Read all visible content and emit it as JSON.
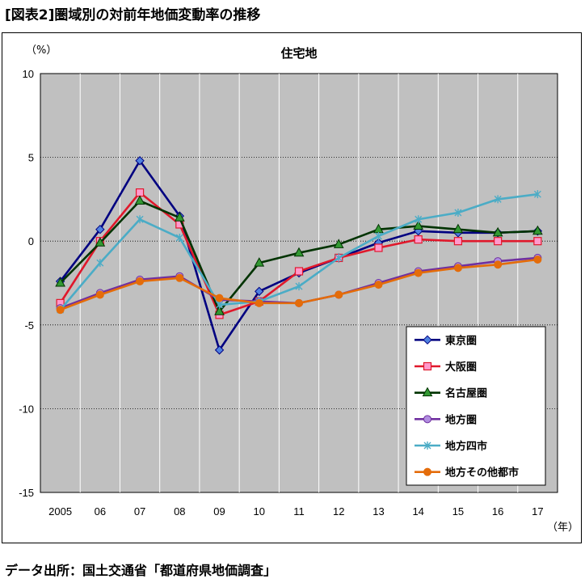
{
  "figure_title": "[図表2]圏域別の対前年地価変動率の推移",
  "source_note": "データ出所：国土交通省「都道府県地価調査」",
  "chart_data": {
    "type": "line",
    "title": "住宅地",
    "y_unit": "（%）",
    "x_unit": "（年）",
    "categories": [
      "2005",
      "06",
      "07",
      "08",
      "09",
      "10",
      "11",
      "12",
      "13",
      "14",
      "15",
      "16",
      "17"
    ],
    "ylim": [
      -15,
      10
    ],
    "yticks": [
      10,
      5,
      0,
      -5,
      -10,
      -15
    ],
    "grid": true,
    "plot_background": "#c0c0c0",
    "legend_position": "bottom-right",
    "series": [
      {
        "name": "東京圏",
        "color": "#000080",
        "marker": "diamond",
        "marker_color": "#4f81e0",
        "values": [
          -2.4,
          0.7,
          4.8,
          1.5,
          -6.5,
          -3.0,
          -1.9,
          -1.0,
          -0.1,
          0.6,
          0.5,
          0.5,
          0.6
        ]
      },
      {
        "name": "大阪圏",
        "color": "#e0182b",
        "marker": "square",
        "marker_color": "#ff99cc",
        "values": [
          -3.7,
          0.0,
          2.9,
          1.0,
          -4.4,
          -3.6,
          -1.8,
          -1.0,
          -0.4,
          0.1,
          0.0,
          0.0,
          0.0
        ]
      },
      {
        "name": "名古屋圏",
        "color": "#003300",
        "marker": "triangle",
        "marker_color": "#339933",
        "values": [
          -2.5,
          -0.1,
          2.4,
          1.4,
          -4.2,
          -1.3,
          -0.7,
          -0.2,
          0.7,
          0.9,
          0.7,
          0.5,
          0.6
        ]
      },
      {
        "name": "地方圏",
        "color": "#7030a0",
        "marker": "circle",
        "marker_color": "#b18ee0",
        "values": [
          -4.0,
          -3.1,
          -2.3,
          -2.1,
          -3.5,
          -3.6,
          -3.7,
          -3.2,
          -2.5,
          -1.8,
          -1.5,
          -1.2,
          -1.0
        ]
      },
      {
        "name": "地方四市",
        "color": "#4bacc6",
        "marker": "star",
        "marker_color": "#4bacc6",
        "values": [
          -4.1,
          -1.3,
          1.3,
          0.2,
          -3.8,
          -3.6,
          -2.7,
          -1.0,
          0.3,
          1.3,
          1.7,
          2.5,
          2.8
        ]
      },
      {
        "name": "地方その他都市",
        "color": "#e46c0a",
        "marker": "circle",
        "marker_color": "#e46c0a",
        "values": [
          -4.1,
          -3.2,
          -2.4,
          -2.2,
          -3.4,
          -3.7,
          -3.7,
          -3.2,
          -2.6,
          -1.9,
          -1.6,
          -1.4,
          -1.1
        ]
      }
    ]
  }
}
